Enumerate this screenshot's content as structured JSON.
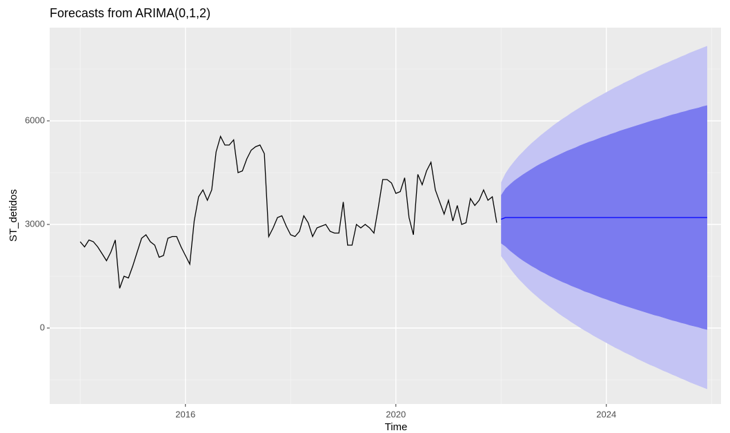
{
  "chart_data": {
    "type": "forecast",
    "title": "Forecasts from ARIMA(0,1,2)",
    "xlabel": "Time",
    "ylabel": "ST_detidos",
    "xlim": [
      2013.42,
      2026.18
    ],
    "ylim": [
      -2200,
      8700
    ],
    "xticks": [
      2016,
      2020,
      2024
    ],
    "yticks": [
      0,
      3000,
      6000
    ],
    "xminor": [
      2014,
      2018,
      2022,
      2026
    ],
    "yminor": [
      -1500,
      1500,
      4500,
      7500
    ],
    "grid": true,
    "series": [
      {
        "color": "#000000",
        "x": [
          2014,
          2014.083,
          2014.167,
          2014.25,
          2014.333,
          2014.417,
          2014.5,
          2014.583,
          2014.667,
          2014.75,
          2014.833,
          2014.917,
          2015,
          2015.083,
          2015.167,
          2015.25,
          2015.333,
          2015.417,
          2015.5,
          2015.583,
          2015.667,
          2015.75,
          2015.833,
          2015.917,
          2016,
          2016.083,
          2016.167,
          2016.25,
          2016.333,
          2016.417,
          2016.5,
          2016.583,
          2016.667,
          2016.75,
          2016.833,
          2016.917,
          2017,
          2017.083,
          2017.167,
          2017.25,
          2017.333,
          2017.417,
          2017.5,
          2017.583,
          2017.667,
          2017.75,
          2017.833,
          2017.917,
          2018,
          2018.083,
          2018.167,
          2018.25,
          2018.333,
          2018.417,
          2018.5,
          2018.583,
          2018.667,
          2018.75,
          2018.833,
          2018.917,
          2019,
          2019.083,
          2019.167,
          2019.25,
          2019.333,
          2019.417,
          2019.5,
          2019.583,
          2019.667,
          2019.75,
          2019.833,
          2019.917,
          2020,
          2020.083,
          2020.167,
          2020.25,
          2020.333,
          2020.417,
          2020.5,
          2020.583,
          2020.667,
          2020.75,
          2020.833,
          2020.917,
          2021,
          2021.083,
          2021.167,
          2021.25,
          2021.333,
          2021.417,
          2021.5,
          2021.583,
          2021.667,
          2021.75,
          2021.833,
          2021.917
        ],
        "values": [
          2500,
          2350,
          2550,
          2500,
          2350,
          2150,
          1950,
          2200,
          2550,
          1150,
          1500,
          1450,
          1800,
          2200,
          2600,
          2700,
          2500,
          2400,
          2050,
          2100,
          2600,
          2650,
          2650,
          2350,
          2100,
          1850,
          3100,
          3800,
          4000,
          3700,
          4000,
          5100,
          5550,
          5300,
          5300,
          5450,
          4500,
          4550,
          4900,
          5150,
          5250,
          5300,
          5050,
          2650,
          2900,
          3200,
          3250,
          2950,
          2700,
          2650,
          2800,
          3250,
          3050,
          2650,
          2900,
          2950,
          3000,
          2800,
          2750,
          2750,
          3650,
          2400,
          2400,
          3000,
          2900,
          3000,
          2900,
          2750,
          3500,
          4300,
          4300,
          4200,
          3900,
          3950,
          4350,
          3200,
          2700,
          4450,
          4150,
          4550,
          4800,
          4000,
          3650,
          3300,
          3700,
          3100,
          3550,
          3000,
          3050,
          3750,
          3550,
          3700,
          4000,
          3700,
          3800,
          3050
        ]
      }
    ],
    "forecast": {
      "mean_color": "#0000ff",
      "color80": "#7b7bef",
      "color95": "#c4c4f4",
      "x": [
        2022,
        2022.083,
        2022.167,
        2022.25,
        2022.333,
        2022.417,
        2022.5,
        2022.583,
        2022.667,
        2022.75,
        2022.833,
        2022.917,
        2023,
        2023.083,
        2023.167,
        2023.25,
        2023.333,
        2023.417,
        2023.5,
        2023.583,
        2023.667,
        2023.75,
        2023.833,
        2023.917,
        2024,
        2024.083,
        2024.167,
        2024.25,
        2024.333,
        2024.417,
        2024.5,
        2024.583,
        2024.667,
        2024.75,
        2024.833,
        2024.917,
        2025,
        2025.083,
        2025.167,
        2025.25,
        2025.333,
        2025.417,
        2025.5,
        2025.583,
        2025.667,
        2025.75,
        2025.833,
        2025.917
      ],
      "mean": [
        3150,
        3200,
        3200,
        3200,
        3200,
        3200,
        3200,
        3200,
        3200,
        3200,
        3200,
        3200,
        3200,
        3200,
        3200,
        3200,
        3200,
        3200,
        3200,
        3200,
        3200,
        3200,
        3200,
        3200,
        3200,
        3200,
        3200,
        3200,
        3200,
        3200,
        3200,
        3200,
        3200,
        3200,
        3200,
        3200,
        3200,
        3200,
        3200,
        3200,
        3200,
        3200,
        3200,
        3200,
        3200,
        3200,
        3200,
        3200
      ],
      "lo80": [
        2450,
        2360,
        2240,
        2140,
        2040,
        1950,
        1870,
        1790,
        1720,
        1640,
        1580,
        1510,
        1450,
        1390,
        1330,
        1280,
        1220,
        1170,
        1120,
        1060,
        1020,
        970,
        920,
        870,
        830,
        780,
        740,
        690,
        650,
        610,
        570,
        530,
        490,
        450,
        410,
        370,
        340,
        300,
        260,
        220,
        190,
        150,
        120,
        80,
        50,
        20,
        -20,
        -50
      ],
      "hi80": [
        3850,
        4040,
        4160,
        4270,
        4360,
        4450,
        4530,
        4610,
        4690,
        4760,
        4820,
        4890,
        4950,
        5010,
        5070,
        5130,
        5180,
        5230,
        5290,
        5340,
        5390,
        5430,
        5480,
        5530,
        5570,
        5620,
        5660,
        5710,
        5750,
        5790,
        5830,
        5870,
        5910,
        5950,
        5990,
        6030,
        6060,
        6100,
        6140,
        6180,
        6210,
        6250,
        6280,
        6320,
        6350,
        6380,
        6420,
        6450
      ],
      "lo95": [
        2080,
        1920,
        1730,
        1570,
        1420,
        1290,
        1160,
        1040,
        930,
        820,
        720,
        620,
        530,
        430,
        340,
        260,
        170,
        90,
        10,
        -70,
        -140,
        -220,
        -290,
        -360,
        -430,
        -500,
        -570,
        -630,
        -700,
        -760,
        -820,
        -890,
        -950,
        -1010,
        -1070,
        -1120,
        -1180,
        -1240,
        -1290,
        -1350,
        -1400,
        -1460,
        -1510,
        -1570,
        -1620,
        -1670,
        -1720,
        -1770
      ],
      "hi95": [
        4220,
        4480,
        4670,
        4830,
        4980,
        5110,
        5240,
        5360,
        5470,
        5580,
        5680,
        5780,
        5880,
        5970,
        6060,
        6140,
        6230,
        6310,
        6390,
        6470,
        6540,
        6620,
        6690,
        6760,
        6830,
        6900,
        6970,
        7030,
        7100,
        7160,
        7220,
        7290,
        7350,
        7410,
        7470,
        7520,
        7580,
        7640,
        7690,
        7750,
        7800,
        7860,
        7910,
        7970,
        8020,
        8070,
        8120,
        8170
      ]
    }
  }
}
